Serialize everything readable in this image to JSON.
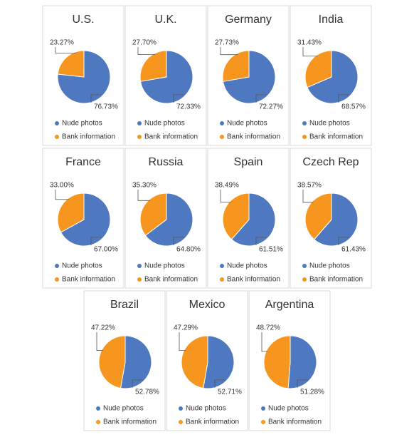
{
  "chart_data": [
    {
      "type": "pie",
      "title": "U.S.",
      "categories": [
        "Nude photos",
        "Bank information"
      ],
      "values": [
        76.73,
        23.27
      ],
      "value_labels": [
        "76.73%",
        "23.27%"
      ],
      "colors": [
        "#4e79c0",
        "#f6961e"
      ]
    },
    {
      "type": "pie",
      "title": "U.K.",
      "categories": [
        "Nude photos",
        "Bank information"
      ],
      "values": [
        72.33,
        27.7
      ],
      "value_labels": [
        "72.33%",
        "27.70%"
      ],
      "colors": [
        "#4e79c0",
        "#f6961e"
      ]
    },
    {
      "type": "pie",
      "title": "Germany",
      "categories": [
        "Nude photos",
        "Bank information"
      ],
      "values": [
        72.27,
        27.73
      ],
      "value_labels": [
        "72.27%",
        "27.73%"
      ],
      "colors": [
        "#4e79c0",
        "#f6961e"
      ]
    },
    {
      "type": "pie",
      "title": "India",
      "categories": [
        "Nude photos",
        "Bank information"
      ],
      "values": [
        68.57,
        31.43
      ],
      "value_labels": [
        "68.57%",
        "31.43%"
      ],
      "colors": [
        "#4e79c0",
        "#f6961e"
      ]
    },
    {
      "type": "pie",
      "title": "France",
      "categories": [
        "Nude photos",
        "Bank information"
      ],
      "values": [
        67.0,
        33.0
      ],
      "value_labels": [
        "67.00%",
        "33.00%"
      ],
      "colors": [
        "#4e79c0",
        "#f6961e"
      ]
    },
    {
      "type": "pie",
      "title": "Russia",
      "categories": [
        "Nude photos",
        "Bank information"
      ],
      "values": [
        64.8,
        35.3
      ],
      "value_labels": [
        "64.80%",
        "35.30%"
      ],
      "colors": [
        "#4e79c0",
        "#f6961e"
      ]
    },
    {
      "type": "pie",
      "title": "Spain",
      "categories": [
        "Nude photos",
        "Bank information"
      ],
      "values": [
        61.51,
        38.49
      ],
      "value_labels": [
        "61.51%",
        "38.49%"
      ],
      "colors": [
        "#4e79c0",
        "#f6961e"
      ]
    },
    {
      "type": "pie",
      "title": "Czech Rep",
      "categories": [
        "Nude photos",
        "Bank information"
      ],
      "values": [
        61.43,
        38.57
      ],
      "value_labels": [
        "61.43%",
        "38.57%"
      ],
      "colors": [
        "#4e79c0",
        "#f6961e"
      ]
    },
    {
      "type": "pie",
      "title": "Brazil",
      "categories": [
        "Nude photos",
        "Bank information"
      ],
      "values": [
        52.78,
        47.22
      ],
      "value_labels": [
        "52.78%",
        "47.22%"
      ],
      "colors": [
        "#4e79c0",
        "#f6961e"
      ]
    },
    {
      "type": "pie",
      "title": "Mexico",
      "categories": [
        "Nude photos",
        "Bank information"
      ],
      "values": [
        52.71,
        47.29
      ],
      "value_labels": [
        "52.71%",
        "47.29%"
      ],
      "colors": [
        "#4e79c0",
        "#f6961e"
      ]
    },
    {
      "type": "pie",
      "title": "Argentina",
      "categories": [
        "Nude photos",
        "Bank information"
      ],
      "values": [
        51.28,
        48.72
      ],
      "value_labels": [
        "51.28%",
        "48.72%"
      ],
      "colors": [
        "#4e79c0",
        "#f6961e"
      ]
    }
  ]
}
